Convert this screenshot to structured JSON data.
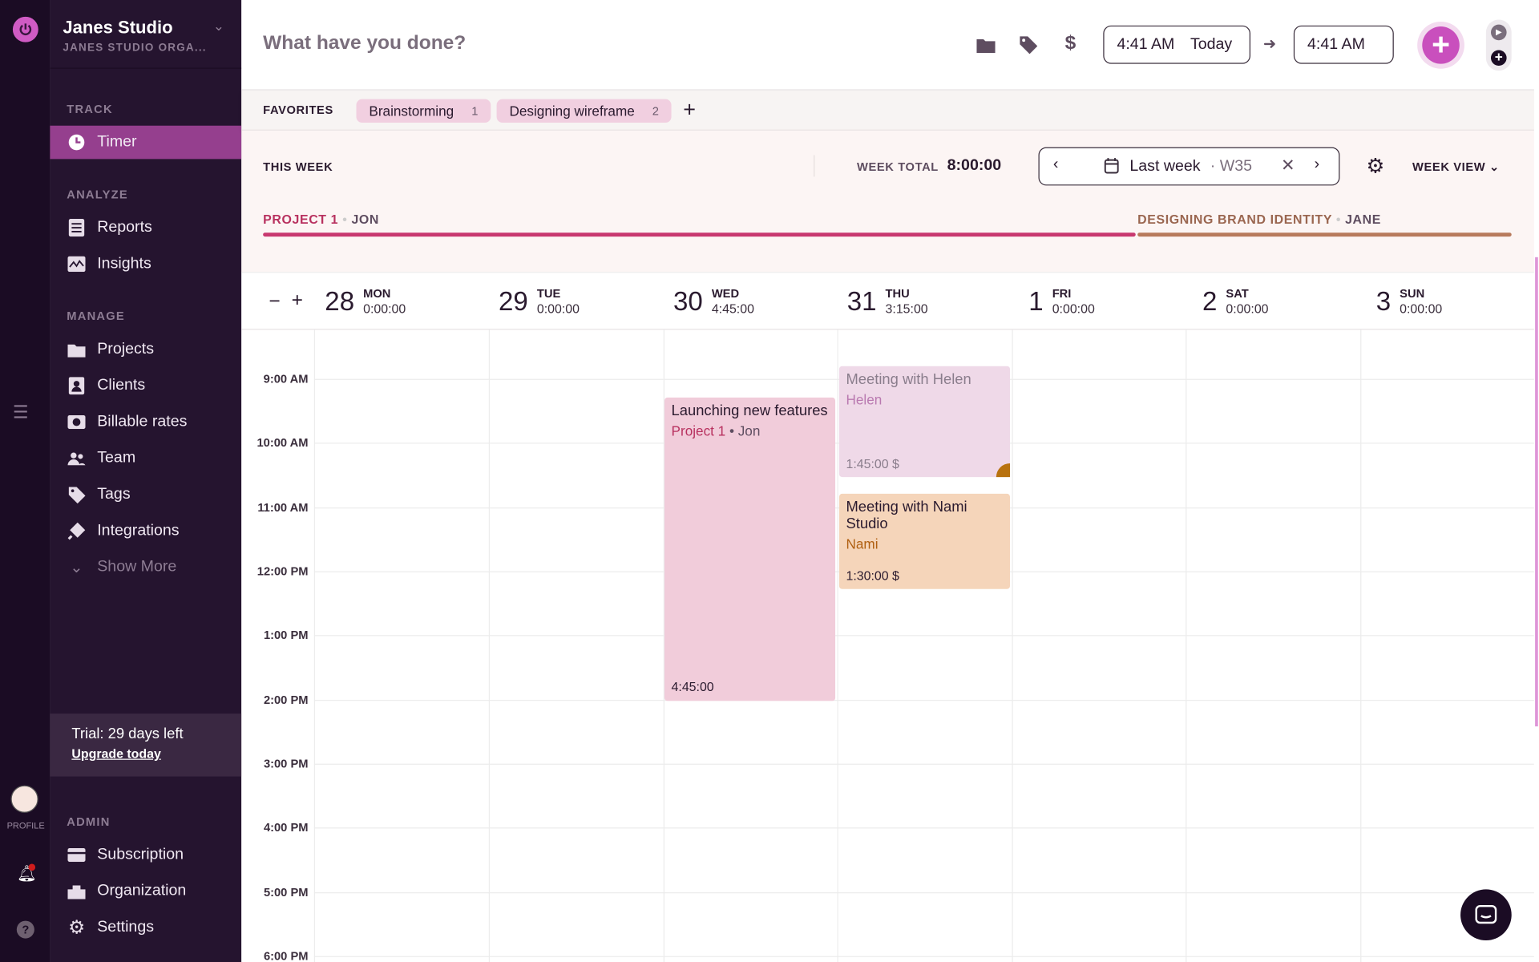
{
  "org": {
    "name": "Janes Studio",
    "subtitle": "JANES STUDIO ORGA..."
  },
  "strip": {
    "profile_label": "PROFILE"
  },
  "sidebar": {
    "sections": {
      "track": "TRACK",
      "analyze": "ANALYZE",
      "manage": "MANAGE",
      "admin": "ADMIN"
    },
    "items": [
      {
        "label": "Timer",
        "icon": "clock-icon"
      },
      {
        "label": "Reports",
        "icon": "document-icon"
      },
      {
        "label": "Insights",
        "icon": "chart-icon"
      },
      {
        "label": "Projects",
        "icon": "folder-icon"
      },
      {
        "label": "Clients",
        "icon": "contact-icon"
      },
      {
        "label": "Billable rates",
        "icon": "dollar-icon"
      },
      {
        "label": "Team",
        "icon": "team-icon"
      },
      {
        "label": "Tags",
        "icon": "tag-icon"
      },
      {
        "label": "Integrations",
        "icon": "plug-icon"
      },
      {
        "label": "Show More",
        "icon": "chevron-down-icon"
      }
    ],
    "trial": {
      "text": "Trial: 29 days left",
      "link": "Upgrade today"
    },
    "admin_items": [
      {
        "label": "Subscription"
      },
      {
        "label": "Organization"
      },
      {
        "label": "Settings"
      }
    ]
  },
  "timer": {
    "placeholder": "What have you done?",
    "start_time": "4:41 AM",
    "start_day": "Today",
    "end_time": "4:41 AM"
  },
  "favorites": {
    "label": "FAVORITES",
    "items": [
      {
        "label": "Brainstorming",
        "count": "1"
      },
      {
        "label": "Designing wireframe",
        "count": "2"
      }
    ]
  },
  "week": {
    "label": "THIS WEEK",
    "total_label": "WEEK TOTAL",
    "total": "8:00:00",
    "range": "Last week",
    "week_num": "· W35",
    "view": "WEEK VIEW",
    "projects": [
      {
        "name": "PROJECT 1",
        "person": "JON",
        "color": "#c8386f",
        "share": 0.6125
      },
      {
        "name": "DESIGNING BRAND IDENTITY",
        "person": "JANE",
        "color": "#b87a5c",
        "share": 0.3875
      }
    ]
  },
  "days": [
    {
      "num": "28",
      "name": "MON",
      "total": "0:00:00"
    },
    {
      "num": "29",
      "name": "TUE",
      "total": "0:00:00"
    },
    {
      "num": "30",
      "name": "WED",
      "total": "4:45:00"
    },
    {
      "num": "31",
      "name": "THU",
      "total": "3:15:00"
    },
    {
      "num": "1",
      "name": "FRI",
      "total": "0:00:00"
    },
    {
      "num": "2",
      "name": "SAT",
      "total": "0:00:00"
    },
    {
      "num": "3",
      "name": "SUN",
      "total": "0:00:00"
    }
  ],
  "hours": [
    "9:00 AM",
    "10:00 AM",
    "11:00 AM",
    "12:00 PM",
    "1:00 PM",
    "2:00 PM",
    "3:00 PM",
    "4:00 PM",
    "5:00 PM",
    "6:00 PM"
  ],
  "events": [
    {
      "title": "Launching new features",
      "project": "Project 1",
      "person": "• Jon",
      "duration": "4:45:00",
      "color": "#f1ccda"
    },
    {
      "title": "Meeting with Helen",
      "client": "Helen",
      "duration": "1:45:00",
      "billable": "$",
      "color": "#efd9e8"
    },
    {
      "title": "Meeting with Nami Studio",
      "client": "Nami",
      "duration": "1:30:00",
      "billable": "$",
      "color": "#f5d5ba"
    }
  ]
}
